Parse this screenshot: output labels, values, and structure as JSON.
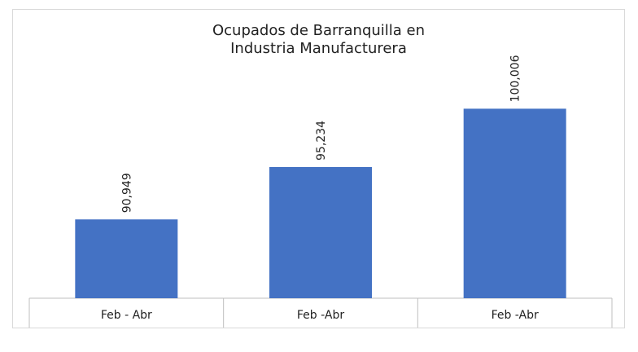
{
  "chart_data": {
    "type": "bar",
    "title_lines": [
      "Ocupados de Barranquilla en",
      "Industria Manufacturera"
    ],
    "categories": [
      "Feb - Abr",
      "Feb -Abr",
      "Feb -Abr"
    ],
    "values": [
      90949,
      95234,
      100006
    ],
    "data_labels": [
      "90,949",
      "95,234",
      "100,006"
    ],
    "xlabel": "",
    "ylabel": "",
    "ylim": [
      84500,
      102900
    ],
    "grid": false,
    "legend": "none",
    "bar_color": "#4472c4",
    "axis_color": "#bfbfbf"
  }
}
